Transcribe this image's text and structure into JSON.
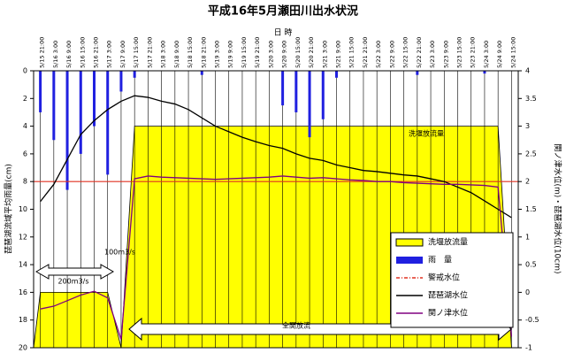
{
  "chart_data": {
    "type": "combo",
    "title": "平成16年5月瀬田川出水状況",
    "x_label": "日 時",
    "y_label": "琵琶湖流域平均雨量(cm)",
    "y2_label": "関ノ津水位(m)・琵琶湖水位(10cm)",
    "categories": [
      "5/15 21:00",
      "5/16 3:00",
      "5/16 9:00",
      "5/16 15:00",
      "5/16 21:00",
      "5/17 3:00",
      "5/17 9:00",
      "5/17 15:00",
      "5/17 21:00",
      "5/18 3:00",
      "5/18 9:00",
      "5/18 15:00",
      "5/18 21:00",
      "5/19 3:00",
      "5/19 9:00",
      "5/19 15:00",
      "5/19 21:00",
      "5/20 3:00",
      "5/20 9:00",
      "5/20 15:00",
      "5/20 21:00",
      "5/21 3:00",
      "5/21 9:00",
      "5/21 15:00",
      "5/21 21:00",
      "5/22 3:00",
      "5/22 9:00",
      "5/22 15:00",
      "5/22 21:00",
      "5/23 3:00",
      "5/23 9:00",
      "5/23 15:00",
      "5/23 21:00",
      "5/24 3:00",
      "5/24 9:00",
      "5/24 15:00"
    ],
    "ylim": [
      0,
      20
    ],
    "y_inverted": true,
    "yticks": [
      0,
      2,
      4,
      6,
      8,
      10,
      12,
      14,
      16,
      18,
      20
    ],
    "y2lim": [
      -1,
      4
    ],
    "y2ticks": [
      -1,
      -0.5,
      0,
      0.5,
      1,
      1.5,
      2,
      2.5,
      3,
      3.5,
      4
    ],
    "series": [
      {
        "name": "洗堰放流量",
        "kind": "area",
        "axis": "y2",
        "color": "#ffff00",
        "values": [
          0,
          0,
          0,
          0,
          0,
          0,
          -1,
          3,
          3,
          3,
          3,
          3,
          3,
          3,
          3,
          3,
          3,
          3,
          3,
          3,
          3,
          3,
          3,
          3,
          3,
          3,
          3,
          3,
          3,
          3,
          3,
          3,
          3,
          3,
          3,
          -1
        ]
      },
      {
        "name": "雨　量",
        "kind": "bar",
        "color": "#2020e0",
        "values": [
          3,
          5,
          8.6,
          6,
          4,
          7.5,
          1.5,
          0.5,
          0,
          0,
          0,
          0,
          0.3,
          0,
          0,
          0,
          0,
          0,
          2.5,
          3,
          4.8,
          3.5,
          0.5,
          0,
          0,
          0,
          0,
          0,
          0.3,
          0,
          0,
          0,
          0,
          0.2,
          0,
          0
        ]
      },
      {
        "name": "琵琶湖水位",
        "kind": "line",
        "axis": "y2",
        "color": "#000000",
        "values": [
          1.64,
          1.95,
          2.4,
          2.85,
          3.1,
          3.3,
          3.45,
          3.55,
          3.52,
          3.45,
          3.4,
          3.3,
          3.15,
          3.0,
          2.9,
          2.8,
          2.72,
          2.65,
          2.6,
          2.5,
          2.42,
          2.38,
          2.3,
          2.25,
          2.2,
          2.18,
          2.15,
          2.12,
          2.1,
          2.05,
          2.0,
          1.9,
          1.8,
          1.65,
          1.5,
          1.35
        ]
      },
      {
        "name": "関ノ津水位",
        "kind": "line",
        "axis": "y2",
        "color": "#800080",
        "values": [
          -0.3,
          -0.25,
          -0.15,
          -0.05,
          0.02,
          -0.1,
          -0.85,
          2.05,
          2.1,
          2.08,
          2.07,
          2.06,
          2.05,
          2.04,
          2.05,
          2.06,
          2.07,
          2.08,
          2.1,
          2.08,
          2.06,
          2.07,
          2.05,
          2.03,
          2.02,
          2.0,
          2.0,
          1.98,
          1.97,
          1.96,
          1.95,
          1.95,
          1.94,
          1.93,
          1.9,
          -0.8
        ]
      }
    ],
    "reference_line": {
      "name": "警戒水位",
      "value": 2,
      "color": "#e03020"
    },
    "annotations": [
      "洗堰放流量",
      "100m3/s",
      "200m3/s",
      "全開放流"
    ]
  }
}
